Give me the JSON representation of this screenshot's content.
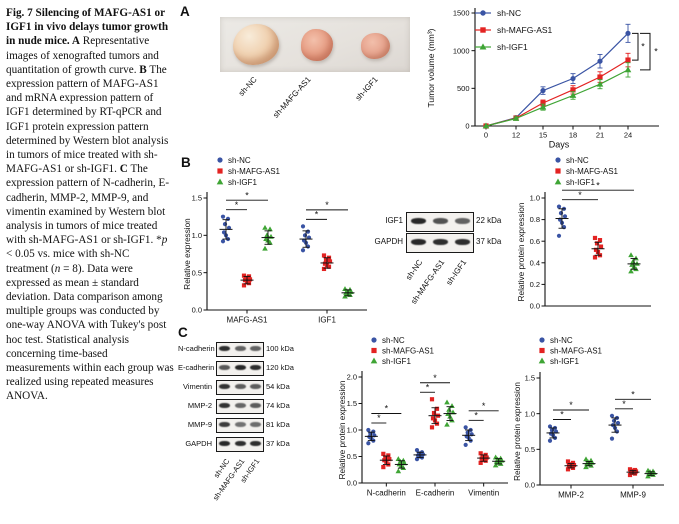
{
  "panels": {
    "a": "A",
    "b": "B",
    "c": "C"
  },
  "colors": {
    "sh_nc": "#3a54a4",
    "sh_mafg": "#e32322",
    "sh_igf1": "#3fa535",
    "axis": "#111111"
  },
  "caption": {
    "segments": [
      {
        "t": "Fig. 7 Silencing of MAFG-AS1 or IGF1 in vivo delays tumor growth in nude mice. ",
        "b": true
      },
      {
        "t": "A",
        "b": true
      },
      {
        "t": " Representative images of xenografted tumors and quantitation of growth curve. "
      },
      {
        "t": "B",
        "b": true
      },
      {
        "t": " The expression pattern of MAFG-AS1 and mRNA expression pattern of IGF1 determined by RT-qPCR and IGF1 protein expression pattern determined by Western blot analysis in tumors of mice treated with sh-MAFG-AS1 or sh-IGF1. "
      },
      {
        "t": "C",
        "b": true
      },
      {
        "t": " The expression pattern of N-cadherin, E-cadherin, MMP-2, MMP-9, and vimentin examined by Western blot analysis in tumors of mice treated with sh-MAFG-AS1 or sh-IGF1. *"
      },
      {
        "t": "p",
        "i": true
      },
      {
        "t": " < 0.05 vs. mice with sh-NC treatment ("
      },
      {
        "t": "n",
        "i": true
      },
      {
        "t": " = 8). Data were expressed as mean ± standard deviation. Data comparison among multiple groups was conducted by one-way ANOVA with Tukey's post hoc test. Statistical analysis concerning time-based measurements within each group was realized using repeated measures ANOVA."
      }
    ]
  },
  "panel_a": {
    "tumor_labels": [
      "sh-NC",
      "sh-MAFG-AS1",
      "sh-IGF1"
    ]
  },
  "chart_data": [
    {
      "id": "tumor-volume",
      "type": "line",
      "xlabel": "Days",
      "ylabel": "Tumor volume (mm³)",
      "x": [
        0,
        12,
        15,
        18,
        21,
        24
      ],
      "ylim": [
        0,
        1500
      ],
      "yticks": [
        0,
        500,
        1000,
        1500
      ],
      "legend": [
        "sh-NC",
        "sh-MAFG-AS1",
        "sh-IGF1"
      ],
      "series": [
        {
          "name": "sh-NC",
          "marker": "circle",
          "color_key": "sh_nc",
          "values": [
            0,
            110,
            470,
            630,
            860,
            1230
          ],
          "sd": [
            0,
            25,
            50,
            65,
            90,
            120
          ]
        },
        {
          "name": "sh-MAFG-AS1",
          "marker": "square",
          "color_key": "sh_mafg",
          "values": [
            0,
            105,
            305,
            480,
            650,
            875
          ],
          "sd": [
            0,
            20,
            40,
            55,
            70,
            90
          ]
        },
        {
          "name": "sh-IGF1",
          "marker": "triangle",
          "color_key": "sh_igf1",
          "values": [
            0,
            100,
            250,
            405,
            555,
            745
          ],
          "sd": [
            0,
            20,
            40,
            50,
            60,
            95
          ]
        }
      ],
      "sig": [
        {
          "from": 0,
          "to": 1,
          "label": "*"
        },
        {
          "from": 0,
          "to": 2,
          "label": "*"
        }
      ]
    },
    {
      "id": "b-expression",
      "type": "scatter",
      "ylabel": "Relative expression",
      "ylim": [
        0,
        1.5
      ],
      "yticks": [
        0,
        0.5,
        1,
        1.5
      ],
      "decimals": 1,
      "categories": [
        "MAFG-AS1",
        "IGF1"
      ],
      "legend": [
        "sh-NC",
        "sh-MAFG-AS1",
        "sh-IGF1"
      ],
      "groups": [
        {
          "name": "sh-NC",
          "marker": "circle",
          "color_key": "sh_nc",
          "points": [
            [
              0.92,
              0.95,
              1.0,
              1.04,
              1.1,
              1.15,
              1.22,
              1.25
            ],
            [
              0.8,
              0.85,
              0.9,
              0.93,
              0.97,
              1.0,
              1.05,
              1.12
            ]
          ],
          "mean": [
            1.08,
            0.95
          ],
          "sd": [
            0.13,
            0.11
          ]
        },
        {
          "name": "sh-MAFG-AS1",
          "marker": "square",
          "color_key": "sh_mafg",
          "points": [
            [
              0.33,
              0.36,
              0.38,
              0.4,
              0.41,
              0.43,
              0.45,
              0.46
            ],
            [
              0.55,
              0.58,
              0.6,
              0.62,
              0.65,
              0.67,
              0.7,
              0.73
            ]
          ],
          "mean": [
            0.4,
            0.63
          ],
          "sd": [
            0.05,
            0.07
          ]
        },
        {
          "name": "sh-IGF1",
          "marker": "triangle",
          "color_key": "sh_igf1",
          "points": [
            [
              0.82,
              0.9,
              0.93,
              0.95,
              0.98,
              1.0,
              1.08,
              1.1
            ],
            [
              0.18,
              0.2,
              0.22,
              0.23,
              0.24,
              0.25,
              0.27,
              0.28
            ]
          ],
          "mean": [
            0.97,
            0.23
          ],
          "sd": [
            0.09,
            0.04
          ]
        }
      ],
      "sig": [
        {
          "cat": 0,
          "from": 0,
          "to": 1,
          "label": "*"
        },
        {
          "cat": 0,
          "from": 0,
          "to": 2,
          "label": "*"
        },
        {
          "cat": 1,
          "from": 0,
          "to": 1,
          "label": "*"
        },
        {
          "cat": 1,
          "from": 0,
          "to": 2,
          "label": "*"
        }
      ]
    },
    {
      "id": "b-protein",
      "type": "scatter",
      "ylabel": "Relative protein expression",
      "ylim": [
        0,
        1.0
      ],
      "yticks": [
        0,
        0.2,
        0.4,
        0.6,
        0.8,
        1.0
      ],
      "decimals": 1,
      "categories": [
        ""
      ],
      "legend": [
        "sh-NC",
        "sh-MAFG-AS1",
        "sh-IGF1"
      ],
      "groups": [
        {
          "name": "sh-NC",
          "marker": "circle",
          "color_key": "sh_nc",
          "points": [
            [
              0.65,
              0.73,
              0.77,
              0.8,
              0.83,
              0.86,
              0.9,
              0.92
            ]
          ],
          "mean": [
            0.81
          ],
          "sd": [
            0.09
          ]
        },
        {
          "name": "sh-MAFG-AS1",
          "marker": "square",
          "color_key": "sh_mafg",
          "points": [
            [
              0.45,
              0.47,
              0.5,
              0.52,
              0.55,
              0.58,
              0.61,
              0.63
            ]
          ],
          "mean": [
            0.53
          ],
          "sd": [
            0.06
          ]
        },
        {
          "name": "sh-IGF1",
          "marker": "triangle",
          "color_key": "sh_igf1",
          "points": [
            [
              0.32,
              0.34,
              0.36,
              0.38,
              0.39,
              0.41,
              0.44,
              0.47
            ]
          ],
          "mean": [
            0.39
          ],
          "sd": [
            0.05
          ]
        }
      ],
      "sig": [
        {
          "cat": 0,
          "from": 0,
          "to": 1,
          "label": "*"
        },
        {
          "cat": 0,
          "from": 0,
          "to": 2,
          "label": "*"
        }
      ]
    },
    {
      "id": "c-emt",
      "type": "scatter",
      "ylabel": "Relative protein expression",
      "ylim": [
        0,
        2.0
      ],
      "yticks": [
        0,
        0.5,
        1.0,
        1.5,
        2.0
      ],
      "decimals": 1,
      "categories": [
        "N-cadherin",
        "E-cadherin",
        "Vimentin"
      ],
      "legend": [
        "sh-NC",
        "sh-MAFG-AS1",
        "sh-IGF1"
      ],
      "groups": [
        {
          "name": "sh-NC",
          "marker": "circle",
          "color_key": "sh_nc",
          "points": [
            [
              0.75,
              0.8,
              0.84,
              0.87,
              0.9,
              0.93,
              0.97,
              1.0
            ],
            [
              0.45,
              0.48,
              0.5,
              0.52,
              0.54,
              0.56,
              0.58,
              0.62
            ],
            [
              0.72,
              0.8,
              0.85,
              0.88,
              0.92,
              0.95,
              1.0,
              1.05
            ]
          ],
          "mean": [
            0.88,
            0.53,
            0.9
          ],
          "sd": [
            0.08,
            0.05,
            0.1
          ]
        },
        {
          "name": "sh-MAFG-AS1",
          "marker": "square",
          "color_key": "sh_mafg",
          "points": [
            [
              0.3,
              0.35,
              0.4,
              0.43,
              0.45,
              0.48,
              0.52,
              0.55
            ],
            [
              1.05,
              1.12,
              1.18,
              1.22,
              1.27,
              1.32,
              1.4,
              1.58
            ],
            [
              0.38,
              0.42,
              0.44,
              0.46,
              0.48,
              0.5,
              0.53,
              0.56
            ]
          ],
          "mean": [
            0.43,
            1.27,
            0.47
          ],
          "sd": [
            0.08,
            0.15,
            0.06
          ]
        },
        {
          "name": "sh-IGF1",
          "marker": "triangle",
          "color_key": "sh_igf1",
          "points": [
            [
              0.22,
              0.28,
              0.32,
              0.35,
              0.37,
              0.4,
              0.42,
              0.45
            ],
            [
              1.1,
              1.18,
              1.25,
              1.3,
              1.33,
              1.38,
              1.45,
              1.52
            ],
            [
              0.33,
              0.36,
              0.38,
              0.4,
              0.42,
              0.44,
              0.46,
              0.48
            ]
          ],
          "mean": [
            0.35,
            1.31,
            0.41
          ],
          "sd": [
            0.07,
            0.13,
            0.05
          ]
        }
      ],
      "sig": [
        {
          "cat": 0,
          "from": 0,
          "to": 1,
          "label": "*"
        },
        {
          "cat": 0,
          "from": 0,
          "to": 2,
          "label": "*"
        },
        {
          "cat": 1,
          "from": 0,
          "to": 1,
          "label": "*"
        },
        {
          "cat": 1,
          "from": 0,
          "to": 2,
          "label": "*"
        },
        {
          "cat": 2,
          "from": 0,
          "to": 1,
          "label": "*"
        },
        {
          "cat": 2,
          "from": 0,
          "to": 2,
          "label": "*"
        }
      ]
    },
    {
      "id": "c-mmp",
      "type": "scatter",
      "ylabel": "Relative protein expression",
      "ylim": [
        0,
        1.5
      ],
      "yticks": [
        0,
        0.5,
        1.0,
        1.5
      ],
      "decimals": 1,
      "categories": [
        "MMP-2",
        "MMP-9"
      ],
      "legend": [
        "sh-NC",
        "sh-MAFG-AS1",
        "sh-IGF1"
      ],
      "groups": [
        {
          "name": "sh-NC",
          "marker": "circle",
          "color_key": "sh_nc",
          "points": [
            [
              0.62,
              0.66,
              0.7,
              0.72,
              0.75,
              0.77,
              0.8,
              0.82
            ],
            [
              0.65,
              0.75,
              0.8,
              0.84,
              0.87,
              0.9,
              0.94,
              0.97
            ]
          ],
          "mean": [
            0.73,
            0.84
          ],
          "sd": [
            0.07,
            0.1
          ]
        },
        {
          "name": "sh-MAFG-AS1",
          "marker": "square",
          "color_key": "sh_mafg",
          "points": [
            [
              0.22,
              0.24,
              0.26,
              0.27,
              0.28,
              0.29,
              0.31,
              0.33
            ],
            [
              0.14,
              0.16,
              0.17,
              0.18,
              0.19,
              0.2,
              0.21,
              0.22
            ]
          ],
          "mean": [
            0.27,
            0.18
          ],
          "sd": [
            0.03,
            0.025
          ]
        },
        {
          "name": "sh-IGF1",
          "marker": "triangle",
          "color_key": "sh_igf1",
          "points": [
            [
              0.25,
              0.27,
              0.29,
              0.3,
              0.31,
              0.32,
              0.34,
              0.36
            ],
            [
              0.12,
              0.14,
              0.15,
              0.16,
              0.17,
              0.18,
              0.19,
              0.2
            ]
          ],
          "mean": [
            0.3,
            0.16
          ],
          "sd": [
            0.03,
            0.025
          ]
        }
      ],
      "sig": [
        {
          "cat": 0,
          "from": 0,
          "to": 1,
          "label": "*"
        },
        {
          "cat": 0,
          "from": 0,
          "to": 2,
          "label": "*"
        },
        {
          "cat": 1,
          "from": 0,
          "to": 1,
          "label": "*"
        },
        {
          "cat": 1,
          "from": 0,
          "to": 2,
          "label": "*"
        }
      ]
    }
  ],
  "blots": {
    "b": {
      "lanes": [
        "sh-NC",
        "sh-MAFG-AS1",
        "sh-IGF1"
      ],
      "rows": [
        {
          "label": "IGF1",
          "kda": "22 kDa",
          "bands": [
            0.95,
            0.55,
            0.4
          ]
        },
        {
          "label": "GAPDH",
          "kda": "37 kDa",
          "bands": [
            0.95,
            0.9,
            0.9
          ]
        }
      ]
    },
    "c": {
      "lanes": [
        "sh-NC",
        "sh-MAFG-AS1",
        "sh-IGF1"
      ],
      "rows": [
        {
          "label": "N-cadherin",
          "kda": "100 kDa",
          "bands": [
            0.9,
            0.4,
            0.4
          ]
        },
        {
          "label": "E-cadherin",
          "kda": "120 kDa",
          "bands": [
            0.5,
            0.95,
            0.9
          ]
        },
        {
          "label": "Vimentin",
          "kda": "54 kDa",
          "bands": [
            0.85,
            0.45,
            0.45
          ]
        },
        {
          "label": "MMP-2",
          "kda": "74 kDa",
          "bands": [
            0.85,
            0.35,
            0.45
          ]
        },
        {
          "label": "MMP-9",
          "kda": "81 kDa",
          "bands": [
            0.75,
            0.25,
            0.3
          ]
        },
        {
          "label": "GAPDH",
          "kda": "37 kDa",
          "bands": [
            0.95,
            0.9,
            0.9
          ]
        }
      ]
    }
  }
}
